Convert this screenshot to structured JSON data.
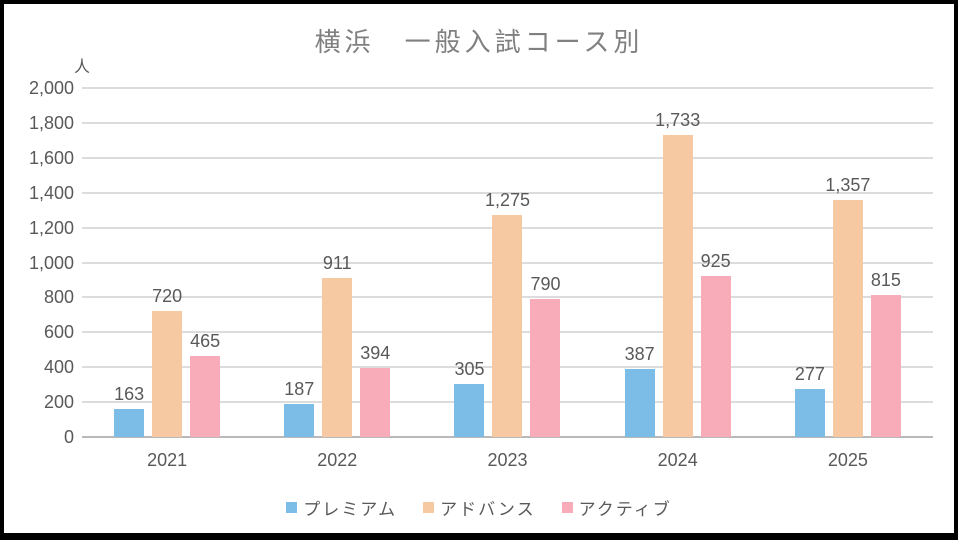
{
  "style": {
    "frame_border_color": "#000000",
    "background_color": "#FFFFFF",
    "gridline_color": "#DCDCDC",
    "axis_line_color": "#B9B9B9",
    "title_color": "#808080",
    "tick_label_color": "#595959",
    "data_label_color": "#595959"
  },
  "chart_data": {
    "type": "bar",
    "title": "横浜　一般入試コース別",
    "ylabel": "人",
    "xlabel": "",
    "categories": [
      "2021",
      "2022",
      "2023",
      "2024",
      "2025"
    ],
    "series": [
      {
        "key": "premium",
        "name": "プレミアム",
        "color": "#7CBDE8",
        "values": [
          163,
          187,
          305,
          387,
          277
        ]
      },
      {
        "key": "advance",
        "name": "アドバンス",
        "color": "#F6C9A3",
        "values": [
          720,
          911,
          1275,
          1733,
          1357
        ]
      },
      {
        "key": "active",
        "name": "アクティブ",
        "color": "#F8ACBA",
        "values": [
          465,
          394,
          790,
          925,
          815
        ]
      }
    ],
    "ylim": [
      0,
      2000
    ],
    "ytick_interval": 200,
    "ytick_labels": [
      "0",
      "200",
      "400",
      "600",
      "800",
      "1,000",
      "1,200",
      "1,400",
      "1,600",
      "1,800",
      "2,000"
    ],
    "data_labels": {
      "premium": [
        "163",
        "187",
        "305",
        "387",
        "277"
      ],
      "advance": [
        "720",
        "911",
        "1,275",
        "1,733",
        "1,357"
      ],
      "active": [
        "465",
        "394",
        "790",
        "925",
        "815"
      ]
    },
    "grid": true,
    "legend_position": "bottom"
  }
}
